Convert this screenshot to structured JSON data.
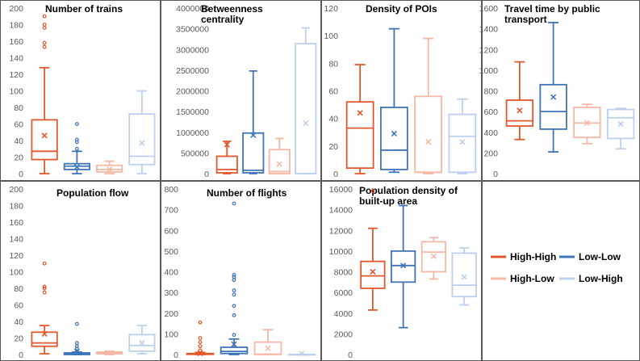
{
  "colors": {
    "High-High": "#e2582c",
    "Low-Low": "#3f74b9",
    "High-Low": "#f5b8a6",
    "Low-High": "#bcd0ee",
    "border": "#595959"
  },
  "legend": {
    "items": [
      {
        "name": "High-High",
        "color_key": "High-High"
      },
      {
        "name": "Low-Low",
        "color_key": "Low-Low"
      },
      {
        "name": "High-Low",
        "color_key": "High-Low"
      },
      {
        "name": "Low-High",
        "color_key": "Low-High"
      }
    ]
  },
  "chart_data": [
    {
      "type": "box",
      "title": "Number of trains",
      "ylim": [
        0,
        200
      ],
      "yticks": [
        "0",
        "20",
        "40",
        "60",
        "80",
        "100",
        "120",
        "140",
        "160",
        "180",
        "200"
      ],
      "series": [
        {
          "name": "High-High",
          "min": 0,
          "q1": 17,
          "median": 27,
          "q3": 65,
          "max": 128,
          "mean": 46,
          "outliers": [
            153,
            158,
            176,
            180,
            190
          ]
        },
        {
          "name": "Low-Low",
          "min": 0,
          "q1": 5,
          "median": 9,
          "q3": 12,
          "max": 27,
          "mean": 8,
          "outliers": [
            30,
            38,
            41,
            60
          ]
        },
        {
          "name": "High-Low",
          "min": 0,
          "q1": 2,
          "median": 5,
          "q3": 10,
          "max": 15,
          "mean": 5,
          "outliers": []
        },
        {
          "name": "Low-High",
          "min": 0,
          "q1": 11,
          "median": 21,
          "q3": 72,
          "max": 100,
          "mean": 37,
          "outliers": []
        }
      ]
    },
    {
      "type": "box",
      "title": "Betweenness centrality",
      "ylim": [
        0,
        4000000
      ],
      "yticks": [
        "0",
        "500000",
        "1000000",
        "1500000",
        "2000000",
        "2500000",
        "3000000",
        "3500000",
        "4000000"
      ],
      "series": [
        {
          "name": "High-High",
          "min": 0,
          "q1": 20000,
          "median": 100000,
          "q3": 420000,
          "max": 780000,
          "mean": 700000,
          "outliers": []
        },
        {
          "name": "Low-Low",
          "min": 0,
          "q1": 20000,
          "median": 80000,
          "q3": 980000,
          "max": 2480000,
          "mean": 930000,
          "outliers": []
        },
        {
          "name": "High-Low",
          "min": 0,
          "q1": 0,
          "median": 50000,
          "q3": 580000,
          "max": 850000,
          "mean": 230000,
          "outliers": []
        },
        {
          "name": "Low-High",
          "min": 0,
          "q1": 0,
          "median": 0,
          "q3": 3140000,
          "max": 3520000,
          "mean": 1220000,
          "outliers": []
        }
      ]
    },
    {
      "type": "box",
      "title": "Density of POIs",
      "ylim": [
        0,
        120
      ],
      "yticks": [
        "0",
        "20",
        "40",
        "60",
        "80",
        "100",
        "120"
      ],
      "series": [
        {
          "name": "High-High",
          "min": 0,
          "q1": 4,
          "median": 33,
          "q3": 52,
          "max": 79,
          "mean": 44,
          "outliers": []
        },
        {
          "name": "Low-Low",
          "min": 1,
          "q1": 3,
          "median": 17,
          "q3": 48,
          "max": 105,
          "mean": 29,
          "outliers": []
        },
        {
          "name": "High-Low",
          "min": 0,
          "q1": 1,
          "median": 1,
          "q3": 56,
          "max": 98,
          "mean": 23,
          "outliers": []
        },
        {
          "name": "Low-High",
          "min": 0,
          "q1": 1,
          "median": 27,
          "q3": 43,
          "max": 54,
          "mean": 23,
          "outliers": []
        }
      ]
    },
    {
      "type": "box",
      "title": "Travel time by public transport",
      "ylim": [
        0,
        1600
      ],
      "yticks": [
        "0",
        "200",
        "400",
        "600",
        "800",
        "1000",
        "1200",
        "1400",
        "1600"
      ],
      "series": [
        {
          "name": "High-High",
          "min": 330,
          "q1": 460,
          "median": 510,
          "q3": 710,
          "max": 1080,
          "mean": 610,
          "outliers": []
        },
        {
          "name": "Low-Low",
          "min": 210,
          "q1": 430,
          "median": 600,
          "q3": 860,
          "max": 1460,
          "mean": 740,
          "outliers": []
        },
        {
          "name": "High-Low",
          "min": 290,
          "q1": 350,
          "median": 490,
          "q3": 640,
          "max": 670,
          "mean": 490,
          "outliers": []
        },
        {
          "name": "Low-High",
          "min": 240,
          "q1": 340,
          "median": 540,
          "q3": 620,
          "max": 630,
          "mean": 480,
          "outliers": []
        }
      ]
    },
    {
      "type": "box",
      "title": "Population flow",
      "ylim": [
        0,
        200
      ],
      "yticks": [
        "0",
        "20",
        "40",
        "60",
        "80",
        "100",
        "120",
        "140",
        "160",
        "180",
        "200"
      ],
      "series": [
        {
          "name": "High-High",
          "min": 1,
          "q1": 10,
          "median": 14,
          "q3": 27,
          "max": 35,
          "mean": 25,
          "outliers": [
            75,
            80,
            82,
            110
          ]
        },
        {
          "name": "Low-Low",
          "min": 0,
          "q1": 0,
          "median": 1,
          "q3": 2,
          "max": 3,
          "mean": 4,
          "outliers": [
            4,
            7,
            10,
            14,
            37
          ]
        },
        {
          "name": "High-Low",
          "min": 0,
          "q1": 1,
          "median": 2,
          "q3": 3,
          "max": 4,
          "mean": 2,
          "outliers": []
        },
        {
          "name": "Low-High",
          "min": 1,
          "q1": 4,
          "median": 11,
          "q3": 24,
          "max": 35,
          "mean": 14,
          "outliers": []
        }
      ]
    },
    {
      "type": "box",
      "title": "Number of flights",
      "ylim": [
        0,
        800
      ],
      "yticks": [
        "0",
        "100",
        "200",
        "300",
        "400",
        "500",
        "600",
        "700",
        "800"
      ],
      "series": [
        {
          "name": "High-High",
          "min": 0,
          "q1": 1,
          "median": 2,
          "q3": 5,
          "max": 10,
          "mean": 6,
          "outliers": [
            20,
            40,
            60,
            80,
            155
          ]
        },
        {
          "name": "Low-Low",
          "min": 0,
          "q1": 5,
          "median": 15,
          "q3": 35,
          "max": 75,
          "mean": 50,
          "outliers": [
            95,
            190,
            235,
            290,
            310,
            360,
            375,
            385,
            730
          ]
        },
        {
          "name": "High-Low",
          "min": 0,
          "q1": 0,
          "median": 2,
          "q3": 60,
          "max": 120,
          "mean": 30,
          "outliers": []
        },
        {
          "name": "Low-High",
          "min": 0,
          "q1": 0,
          "median": 0,
          "q3": 0,
          "max": 0,
          "mean": 5,
          "outliers": []
        }
      ]
    },
    {
      "type": "box",
      "title": "Population density of built-up area",
      "ylim": [
        0,
        16000
      ],
      "yticks": [
        "0",
        "2000",
        "4000",
        "6000",
        "8000",
        "10000",
        "12000",
        "14000",
        "16000"
      ],
      "series": [
        {
          "name": "High-High",
          "min": 4300,
          "q1": 6400,
          "median": 7600,
          "q3": 9000,
          "max": 12200,
          "mean": 8000,
          "outliers": [
            15800
          ]
        },
        {
          "name": "Low-Low",
          "min": 2600,
          "q1": 7000,
          "median": 8600,
          "q3": 10000,
          "max": 14400,
          "mean": 8600,
          "outliers": []
        },
        {
          "name": "High-Low",
          "min": 7300,
          "q1": 8000,
          "median": 9900,
          "q3": 10900,
          "max": 11300,
          "mean": 9500,
          "outliers": []
        },
        {
          "name": "Low-High",
          "min": 4800,
          "q1": 5600,
          "median": 6700,
          "q3": 9800,
          "max": 10300,
          "mean": 7500,
          "outliers": []
        }
      ]
    }
  ]
}
